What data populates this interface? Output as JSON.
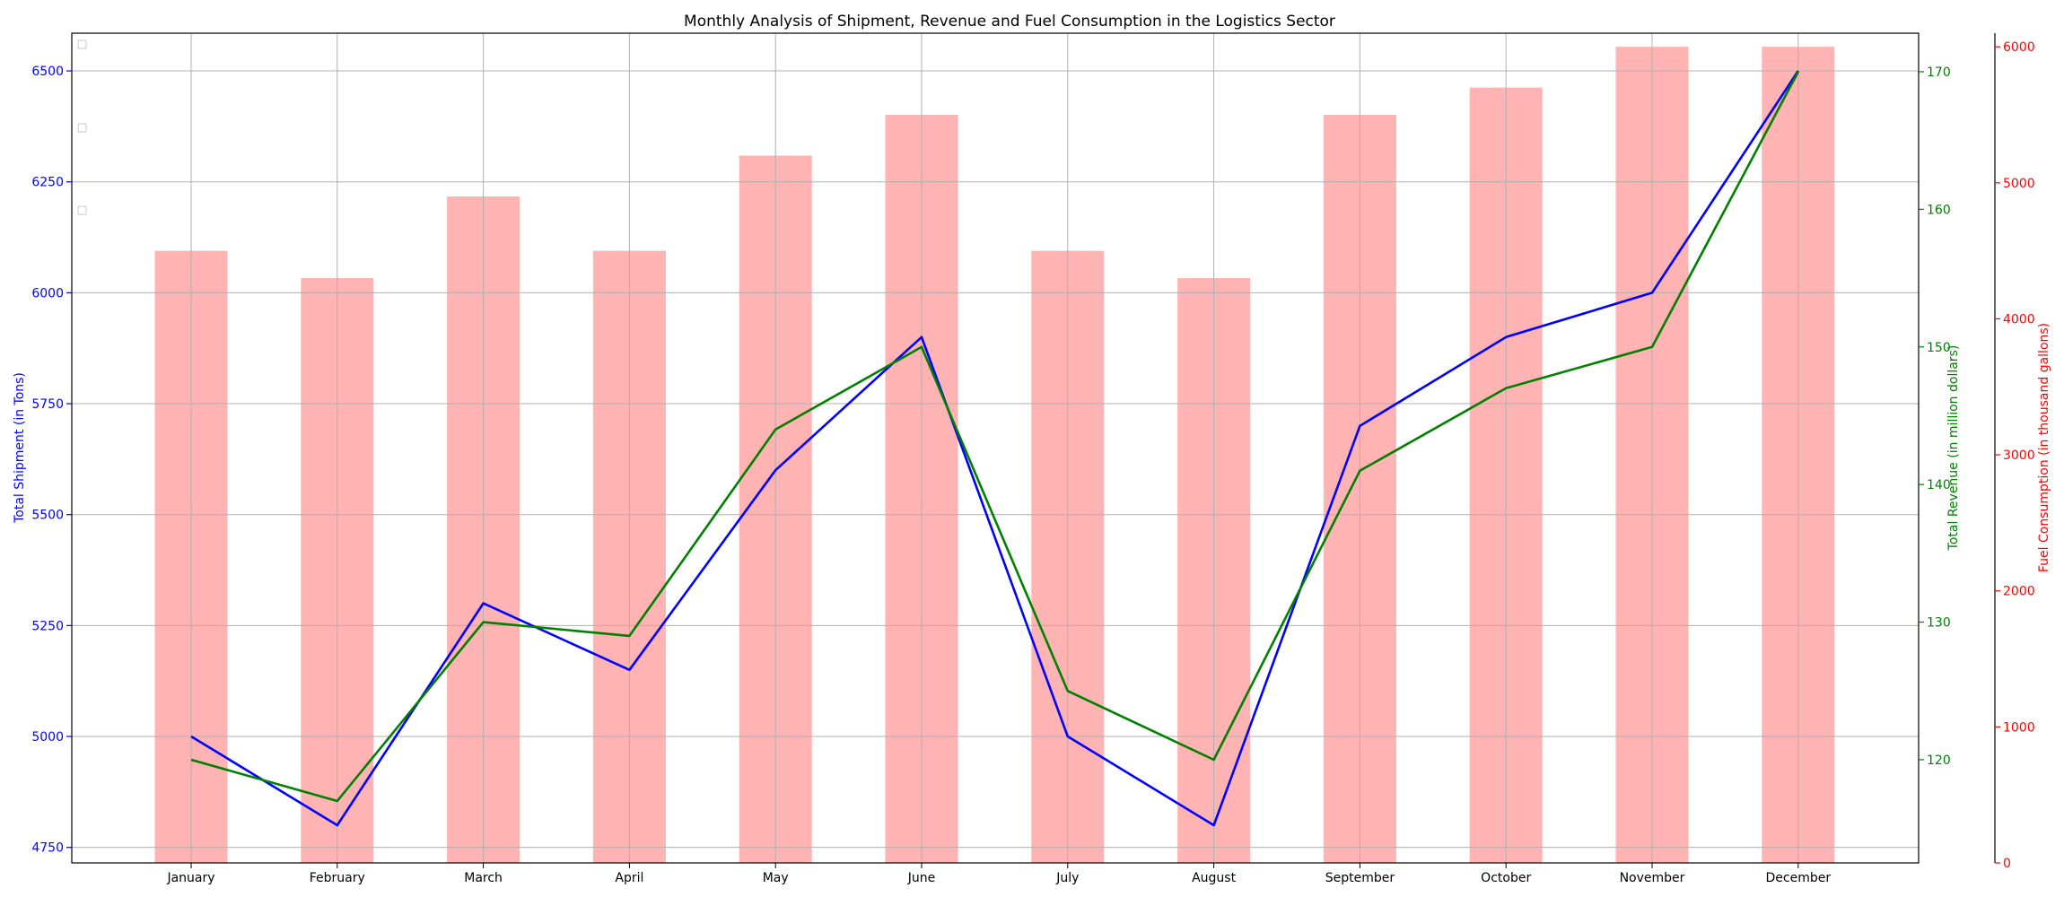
{
  "chart_data": {
    "type": "bar+line",
    "title": "Monthly Analysis of Shipment, Revenue and Fuel Consumption in the Logistics Sector",
    "categories": [
      "January",
      "February",
      "March",
      "April",
      "May",
      "June",
      "July",
      "August",
      "September",
      "October",
      "November",
      "December"
    ],
    "grid": true,
    "legend": {
      "placement": "top-left",
      "entries": [
        "",
        "",
        ""
      ]
    },
    "axes": {
      "y_left": {
        "label": "Total Shipment (in Tons)",
        "color": "#0000ff",
        "ylim": [
          4715,
          6585
        ],
        "ticks": [
          4750,
          5000,
          5250,
          5500,
          5750,
          6000,
          6250,
          6500
        ]
      },
      "y_right1": {
        "label": "Total Revenue (in million dollars)",
        "color": "#008000",
        "ylim": [
          112.5,
          172.8
        ],
        "ticks": [
          120,
          130,
          140,
          150,
          160,
          170
        ]
      },
      "y_right2": {
        "label": "Fuel Consumption (in thousand gallons)",
        "color": "#ff0000",
        "ylim": [
          0,
          6100
        ],
        "ticks": [
          0,
          1000,
          2000,
          3000,
          4000,
          5000,
          6000
        ]
      }
    },
    "series": [
      {
        "kind": "line",
        "axis": "y_left",
        "color": "#0000ff",
        "values": [
          5000,
          4800,
          5300,
          5150,
          5600,
          5900,
          5000,
          4800,
          5700,
          5900,
          6000,
          6500
        ]
      },
      {
        "kind": "line",
        "axis": "y_right1",
        "color": "#008000",
        "values": [
          120,
          117,
          130,
          129,
          144,
          150,
          125,
          120,
          141,
          147,
          150,
          170
        ]
      },
      {
        "kind": "bar",
        "axis": "y_right2",
        "color": "#ffb3b3",
        "values": [
          4500,
          4300,
          4900,
          4500,
          5200,
          5500,
          4500,
          4300,
          5500,
          5700,
          6000,
          6000
        ]
      }
    ]
  }
}
